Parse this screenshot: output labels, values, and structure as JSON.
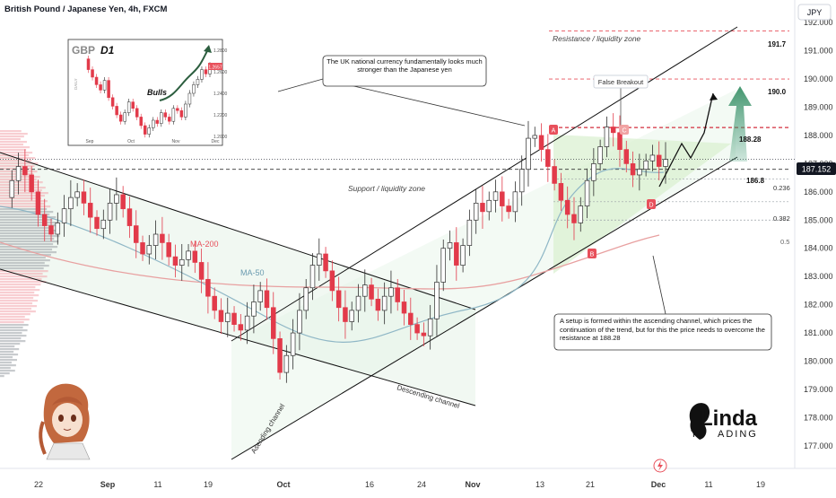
{
  "header": {
    "symbol_title": "British Pound / Japanese Yen, 4h, FXCM",
    "currency": "JPY"
  },
  "chart_data": {
    "type": "candlestick",
    "title": "British Pound / Japanese Yen, 4h, FXCM",
    "ylim": [
      176.2,
      192.8
    ],
    "y_ticks": [
      "192.000",
      "191.000",
      "190.000",
      "189.000",
      "188.000",
      "187.000",
      "186.000",
      "185.000",
      "184.000",
      "183.000",
      "182.000",
      "181.000",
      "180.000",
      "179.000",
      "178.000",
      "177.000"
    ],
    "x_ticks": [
      "22",
      "Sep",
      "11",
      "19",
      "Oct",
      "16",
      "24",
      "Nov",
      "13",
      "21",
      "Dec",
      "11",
      "19"
    ],
    "current_price": "187.152",
    "levels": [
      {
        "value": 191.7,
        "label": "191.7",
        "caption": "Resistance / liquidity zone",
        "style": "dashed",
        "color": "#e8505b"
      },
      {
        "value": 190.0,
        "label": "190.0",
        "caption": "",
        "style": "dashed",
        "color": "#e8505b"
      },
      {
        "value": 188.28,
        "label": "188.28",
        "caption": "",
        "style": "dashed",
        "color": "#d32f3f"
      },
      {
        "value": 186.8,
        "label": "186.8",
        "caption": "Support / liquidity zone",
        "style": "dashed",
        "color": "#333333"
      }
    ],
    "fib_levels": [
      {
        "value": 186.45,
        "label": "0.236"
      },
      {
        "value": 185.65,
        "label": "0.382"
      },
      {
        "value": 185.0,
        "label": "0.5"
      }
    ],
    "moving_averages": [
      {
        "name": "MA-200",
        "color": "#e8505b"
      },
      {
        "name": "MA-50",
        "color": "#6a9bb0"
      }
    ],
    "channels": [
      {
        "name": "Descending channel"
      },
      {
        "name": "Asending channel"
      }
    ],
    "markers": [
      "A",
      "B",
      "C",
      "D"
    ],
    "annotations": {
      "false_breakout": "False Breakout",
      "callout_top": "The UK national currency fundamentally looks much stronger than the Japanese yen",
      "callout_bottom": "A setup is formed within the ascending channel, which prices the continuation of the trend, but for this the price needs to overcome the resistance at 188.28"
    },
    "inset": {
      "title": "GBP",
      "timeframe": "D1",
      "label": "Bulls",
      "y_ticks": [
        "1.2800",
        "1.2600",
        "1.2400",
        "1.2200",
        "1.2000"
      ],
      "x_ticks": [
        "Sep",
        "Oct",
        "Nov",
        "Dec"
      ],
      "price_tag": "1.2657",
      "side_label": "DAILY",
      "close_series": [
        1.272,
        1.262,
        1.255,
        1.248,
        1.243,
        1.252,
        1.236,
        1.228,
        1.22,
        1.214,
        1.222,
        1.232,
        1.226,
        1.218,
        1.21,
        1.202,
        1.208,
        1.215,
        1.212,
        1.222,
        1.218,
        1.214,
        1.226,
        1.224,
        1.218,
        1.23,
        1.24,
        1.248,
        1.253,
        1.262,
        1.258,
        1.266
      ]
    },
    "price_series": [
      185.8,
      186.4,
      186.9,
      186.6,
      186.0,
      185.2,
      184.8,
      184.5,
      184.9,
      185.4,
      185.8,
      186.0,
      185.6,
      185.1,
      184.7,
      185.0,
      185.6,
      185.9,
      185.4,
      184.8,
      184.2,
      183.8,
      184.1,
      184.5,
      184.2,
      183.7,
      183.4,
      183.6,
      183.9,
      183.5,
      182.9,
      182.3,
      181.8,
      181.4,
      181.7,
      181.3,
      181.1,
      181.6,
      182.1,
      182.5,
      181.9,
      180.8,
      179.6,
      180.2,
      181.0,
      181.8,
      182.6,
      183.4,
      183.8,
      183.2,
      182.5,
      181.9,
      181.4,
      181.8,
      182.3,
      182.7,
      182.2,
      181.8,
      182.3,
      182.6,
      182.1,
      181.7,
      181.3,
      181.0,
      180.9,
      181.5,
      182.8,
      184.0,
      184.2,
      183.4,
      184.1,
      185.0,
      185.6,
      185.3,
      185.7,
      186.0,
      185.5,
      185.3,
      186.0,
      186.8,
      187.9,
      188.0,
      187.5,
      186.9,
      186.3,
      185.7,
      185.2,
      184.9,
      185.5,
      186.4,
      187.0,
      187.6,
      188.3,
      188.1,
      187.5,
      187.0,
      186.6,
      186.8,
      187.1,
      187.3,
      186.9,
      187.152
    ]
  }
}
